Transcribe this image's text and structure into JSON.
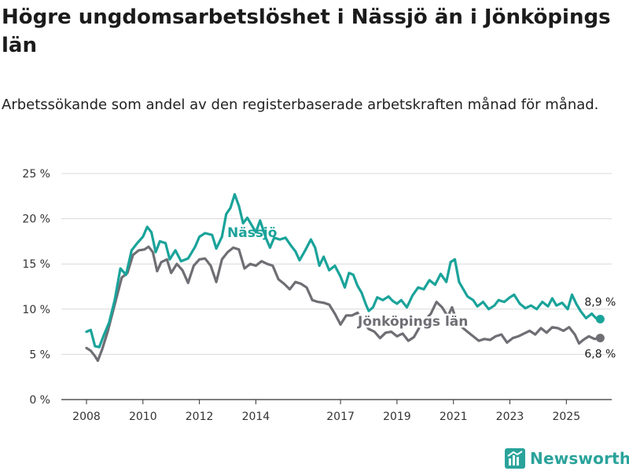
{
  "title": "Högre ungdomsarbetslöshet i Nässjö än i Jönköpings län",
  "subtitle": "Arbetssökande som andel av den registerbaserade arbetskraften månad för månad.",
  "brand": {
    "name": "Newsworthy"
  },
  "colors": {
    "nassjo": "#1aa39a",
    "lan": "#6f6e74",
    "grid": "#d9d9d9",
    "axis": "#333333"
  },
  "chart_data": {
    "type": "line",
    "title": "Högre ungdomsarbetslöshet i Nässjö än i Jönköpings län",
    "xlabel": "",
    "ylabel": "",
    "xlim": [
      2007.9,
      2026.2
    ],
    "ylim": [
      0,
      25
    ],
    "y_ticks": [
      0,
      5,
      10,
      15,
      20,
      25
    ],
    "y_tick_labels": [
      "0 %",
      "5 %",
      "10 %",
      "15 %",
      "20 %",
      "25 %"
    ],
    "x_ticks": [
      2008,
      2010,
      2012,
      2014,
      2017,
      2019,
      2021,
      2023,
      2025
    ],
    "x_tick_labels": [
      "2008",
      "2010",
      "2012",
      "2014",
      "2017",
      "2019",
      "2021",
      "2023",
      "2025"
    ],
    "grid": true,
    "series": [
      {
        "name": "Nässjö",
        "color": "#1aa39a",
        "end_label": "8,9 %",
        "points": [
          [
            2008.0,
            7.5
          ],
          [
            2008.15,
            7.7
          ],
          [
            2008.3,
            5.9
          ],
          [
            2008.45,
            5.8
          ],
          [
            2008.6,
            7.0
          ],
          [
            2008.8,
            8.5
          ],
          [
            2009.0,
            11.0
          ],
          [
            2009.2,
            14.5
          ],
          [
            2009.4,
            13.8
          ],
          [
            2009.6,
            16.5
          ],
          [
            2009.8,
            17.3
          ],
          [
            2010.0,
            18.0
          ],
          [
            2010.15,
            19.1
          ],
          [
            2010.3,
            18.5
          ],
          [
            2010.45,
            16.3
          ],
          [
            2010.6,
            17.5
          ],
          [
            2010.8,
            17.3
          ],
          [
            2010.95,
            15.5
          ],
          [
            2011.15,
            16.5
          ],
          [
            2011.35,
            15.3
          ],
          [
            2011.6,
            15.6
          ],
          [
            2011.85,
            16.9
          ],
          [
            2012.0,
            18.0
          ],
          [
            2012.2,
            18.4
          ],
          [
            2012.45,
            18.2
          ],
          [
            2012.6,
            16.7
          ],
          [
            2012.8,
            18.0
          ],
          [
            2012.95,
            20.5
          ],
          [
            2013.1,
            21.2
          ],
          [
            2013.25,
            22.7
          ],
          [
            2013.4,
            21.4
          ],
          [
            2013.55,
            19.5
          ],
          [
            2013.7,
            20.1
          ],
          [
            2013.85,
            19.3
          ],
          [
            2014.0,
            18.5
          ],
          [
            2014.15,
            19.8
          ],
          [
            2014.35,
            17.9
          ],
          [
            2014.5,
            16.8
          ],
          [
            2014.65,
            17.9
          ],
          [
            2014.85,
            17.7
          ],
          [
            2015.05,
            17.9
          ],
          [
            2015.25,
            17.0
          ],
          [
            2015.4,
            16.4
          ],
          [
            2015.55,
            15.4
          ],
          [
            2015.75,
            16.5
          ],
          [
            2015.95,
            17.7
          ],
          [
            2016.1,
            16.8
          ],
          [
            2016.25,
            14.8
          ],
          [
            2016.4,
            15.8
          ],
          [
            2016.6,
            14.3
          ],
          [
            2016.8,
            14.8
          ],
          [
            2017.0,
            13.6
          ],
          [
            2017.15,
            12.4
          ],
          [
            2017.3,
            14.0
          ],
          [
            2017.45,
            13.8
          ],
          [
            2017.6,
            12.6
          ],
          [
            2017.75,
            11.8
          ],
          [
            2017.9,
            10.5
          ],
          [
            2018.0,
            9.8
          ],
          [
            2018.15,
            10.2
          ],
          [
            2018.3,
            11.3
          ],
          [
            2018.5,
            11.0
          ],
          [
            2018.7,
            11.4
          ],
          [
            2018.85,
            10.9
          ],
          [
            2019.0,
            10.6
          ],
          [
            2019.15,
            11.0
          ],
          [
            2019.35,
            10.2
          ],
          [
            2019.55,
            11.5
          ],
          [
            2019.75,
            12.4
          ],
          [
            2019.95,
            12.2
          ],
          [
            2020.15,
            13.2
          ],
          [
            2020.35,
            12.7
          ],
          [
            2020.55,
            13.9
          ],
          [
            2020.75,
            13.0
          ],
          [
            2020.9,
            15.2
          ],
          [
            2021.05,
            15.5
          ],
          [
            2021.2,
            13.0
          ],
          [
            2021.35,
            12.2
          ],
          [
            2021.5,
            11.4
          ],
          [
            2021.7,
            11.0
          ],
          [
            2021.85,
            10.3
          ],
          [
            2022.05,
            10.8
          ],
          [
            2022.25,
            10.0
          ],
          [
            2022.45,
            10.4
          ],
          [
            2022.6,
            11.0
          ],
          [
            2022.8,
            10.8
          ],
          [
            2023.0,
            11.3
          ],
          [
            2023.15,
            11.6
          ],
          [
            2023.35,
            10.6
          ],
          [
            2023.55,
            10.1
          ],
          [
            2023.75,
            10.4
          ],
          [
            2023.95,
            10.0
          ],
          [
            2024.15,
            10.8
          ],
          [
            2024.35,
            10.3
          ],
          [
            2024.5,
            11.2
          ],
          [
            2024.65,
            10.4
          ],
          [
            2024.85,
            10.7
          ],
          [
            2025.05,
            10.0
          ],
          [
            2025.2,
            11.6
          ],
          [
            2025.35,
            10.6
          ],
          [
            2025.5,
            9.8
          ],
          [
            2025.7,
            9.0
          ],
          [
            2025.9,
            9.5
          ],
          [
            2026.05,
            9.0
          ],
          [
            2026.2,
            8.9
          ]
        ]
      },
      {
        "name": "Jönköpings län",
        "color": "#6f6e74",
        "end_label": "6,8 %",
        "points": [
          [
            2008.0,
            5.7
          ],
          [
            2008.15,
            5.4
          ],
          [
            2008.3,
            4.8
          ],
          [
            2008.4,
            4.3
          ],
          [
            2008.55,
            5.5
          ],
          [
            2008.75,
            7.5
          ],
          [
            2009.0,
            10.5
          ],
          [
            2009.25,
            13.5
          ],
          [
            2009.45,
            14.0
          ],
          [
            2009.65,
            16.0
          ],
          [
            2009.85,
            16.5
          ],
          [
            2010.05,
            16.6
          ],
          [
            2010.2,
            16.9
          ],
          [
            2010.35,
            16.3
          ],
          [
            2010.5,
            14.2
          ],
          [
            2010.65,
            15.2
          ],
          [
            2010.85,
            15.5
          ],
          [
            2011.0,
            14.0
          ],
          [
            2011.2,
            15.0
          ],
          [
            2011.4,
            14.3
          ],
          [
            2011.6,
            12.9
          ],
          [
            2011.8,
            14.8
          ],
          [
            2012.0,
            15.5
          ],
          [
            2012.2,
            15.6
          ],
          [
            2012.4,
            14.8
          ],
          [
            2012.6,
            13.0
          ],
          [
            2012.8,
            15.5
          ],
          [
            2013.0,
            16.3
          ],
          [
            2013.2,
            16.8
          ],
          [
            2013.4,
            16.6
          ],
          [
            2013.6,
            14.5
          ],
          [
            2013.8,
            15.0
          ],
          [
            2014.0,
            14.8
          ],
          [
            2014.2,
            15.3
          ],
          [
            2014.4,
            15.0
          ],
          [
            2014.6,
            14.8
          ],
          [
            2014.8,
            13.3
          ],
          [
            2015.0,
            12.8
          ],
          [
            2015.2,
            12.2
          ],
          [
            2015.4,
            13.0
          ],
          [
            2015.6,
            12.8
          ],
          [
            2015.8,
            12.4
          ],
          [
            2016.0,
            11.0
          ],
          [
            2016.2,
            10.8
          ],
          [
            2016.4,
            10.7
          ],
          [
            2016.6,
            10.5
          ],
          [
            2016.8,
            9.5
          ],
          [
            2017.0,
            8.3
          ],
          [
            2017.2,
            9.3
          ],
          [
            2017.4,
            9.3
          ],
          [
            2017.6,
            9.6
          ],
          [
            2017.8,
            8.6
          ],
          [
            2018.0,
            7.8
          ],
          [
            2018.2,
            7.5
          ],
          [
            2018.4,
            6.8
          ],
          [
            2018.6,
            7.4
          ],
          [
            2018.8,
            7.5
          ],
          [
            2019.0,
            7.0
          ],
          [
            2019.2,
            7.3
          ],
          [
            2019.4,
            6.5
          ],
          [
            2019.6,
            6.9
          ],
          [
            2019.8,
            8.0
          ],
          [
            2020.0,
            8.8
          ],
          [
            2020.2,
            9.5
          ],
          [
            2020.4,
            10.8
          ],
          [
            2020.6,
            10.2
          ],
          [
            2020.8,
            9.2
          ],
          [
            2020.95,
            10.2
          ],
          [
            2021.1,
            8.8
          ],
          [
            2021.3,
            8.0
          ],
          [
            2021.5,
            7.5
          ],
          [
            2021.7,
            7.0
          ],
          [
            2021.9,
            6.5
          ],
          [
            2022.1,
            6.7
          ],
          [
            2022.3,
            6.6
          ],
          [
            2022.5,
            7.0
          ],
          [
            2022.7,
            7.2
          ],
          [
            2022.9,
            6.3
          ],
          [
            2023.1,
            6.8
          ],
          [
            2023.3,
            7.0
          ],
          [
            2023.5,
            7.3
          ],
          [
            2023.7,
            7.6
          ],
          [
            2023.9,
            7.2
          ],
          [
            2024.1,
            7.9
          ],
          [
            2024.3,
            7.4
          ],
          [
            2024.5,
            8.0
          ],
          [
            2024.7,
            7.9
          ],
          [
            2024.9,
            7.6
          ],
          [
            2025.1,
            8.0
          ],
          [
            2025.3,
            7.2
          ],
          [
            2025.45,
            6.2
          ],
          [
            2025.6,
            6.6
          ],
          [
            2025.8,
            7.0
          ],
          [
            2026.0,
            6.7
          ],
          [
            2026.2,
            6.8
          ]
        ]
      }
    ]
  }
}
